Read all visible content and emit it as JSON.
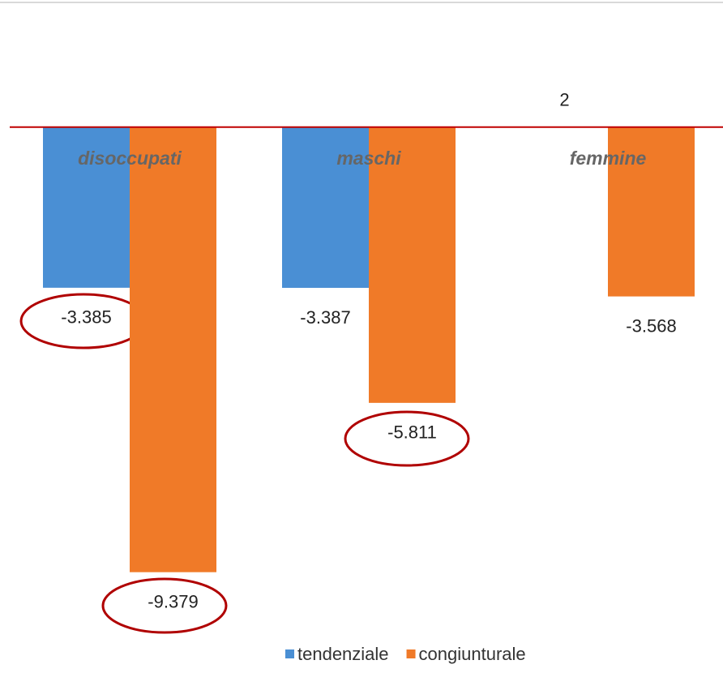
{
  "chart_data": {
    "type": "bar",
    "categories": [
      "disoccupati",
      "maschi",
      "femmine"
    ],
    "series": [
      {
        "name": "tendenziale",
        "color": "#4a8fd4",
        "values": [
          -3385,
          -3387,
          2
        ],
        "value_labels": [
          "-3.385",
          "-3.387",
          "2"
        ]
      },
      {
        "name": "congiunturale",
        "color": "#f07a28",
        "values": [
          -9379,
          -5811,
          -3568
        ],
        "value_labels": [
          "-9.379",
          "-5.811",
          "-3.568"
        ]
      }
    ],
    "ylim": [
      -10000,
      1500
    ],
    "zero_line_color": "#c00000"
  }
}
